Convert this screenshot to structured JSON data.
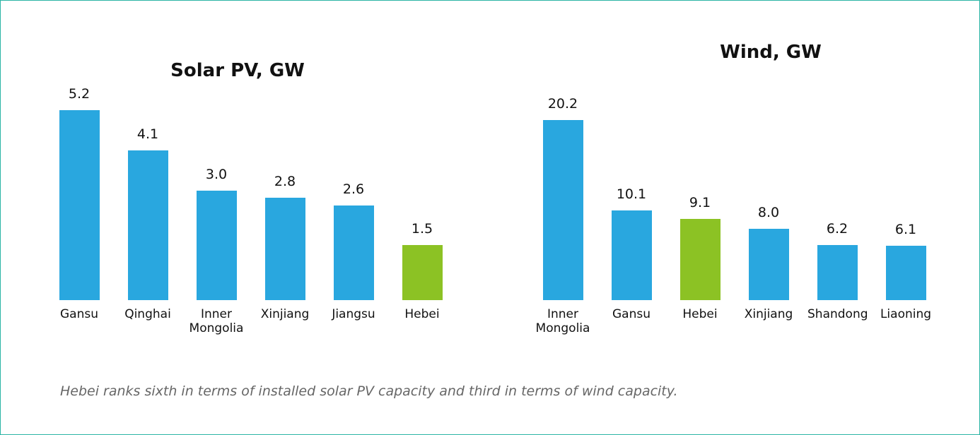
{
  "chart_data": [
    {
      "type": "bar",
      "title": "Solar PV, GW",
      "categories": [
        "Gansu",
        "Qinghai",
        "Inner Mongolia",
        "Xinjiang",
        "Jiangsu",
        "Hebei"
      ],
      "values": [
        5.2,
        4.1,
        3.0,
        2.8,
        2.6,
        1.5
      ],
      "value_labels": [
        "5.2",
        "4.1",
        "3.0",
        "2.8",
        "2.6",
        "1.5"
      ],
      "colors": [
        "#29a7df",
        "#29a7df",
        "#29a7df",
        "#29a7df",
        "#29a7df",
        "#8cc224"
      ]
    },
    {
      "type": "bar",
      "title": "Wind, GW",
      "categories": [
        "Inner Mongolia",
        "Gansu",
        "Hebei",
        "Xinjiang",
        "Shandong",
        "Liaoning"
      ],
      "values": [
        20.2,
        10.1,
        9.1,
        8.0,
        6.2,
        6.1
      ],
      "value_labels": [
        "20.2",
        "10.1",
        "9.1",
        "8.0",
        "6.2",
        "6.1"
      ],
      "colors": [
        "#29a7df",
        "#29a7df",
        "#8cc224",
        "#29a7df",
        "#29a7df",
        "#29a7df"
      ]
    }
  ],
  "caption": "Hebei ranks sixth in terms of installed solar PV capacity and third in terms of wind capacity."
}
